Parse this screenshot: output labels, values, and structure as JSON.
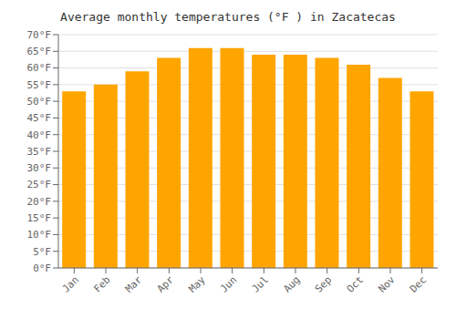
{
  "chart_data": {
    "type": "bar",
    "title": "Average monthly temperatures (°F ) in Zacatecas",
    "categories": [
      "Jan",
      "Feb",
      "Mar",
      "Apr",
      "May",
      "Jun",
      "Jul",
      "Aug",
      "Sep",
      "Oct",
      "Nov",
      "Dec"
    ],
    "values": [
      53,
      55,
      59,
      63,
      66,
      66,
      64,
      64,
      63,
      61,
      57,
      53
    ],
    "color": "#FFA500",
    "ylim": [
      0,
      70
    ],
    "yticks": [
      {
        "value": 0,
        "label": "0°F"
      },
      {
        "value": 5,
        "label": "5°F"
      },
      {
        "value": 10,
        "label": "10°F"
      },
      {
        "value": 15,
        "label": "15°F"
      },
      {
        "value": 20,
        "label": "20°F"
      },
      {
        "value": 25,
        "label": "25°F"
      },
      {
        "value": 30,
        "label": "30°F"
      },
      {
        "value": 35,
        "label": "35°F"
      },
      {
        "value": 40,
        "label": "40°F"
      },
      {
        "value": 45,
        "label": "45°F"
      },
      {
        "value": 50,
        "label": "50°F"
      },
      {
        "value": 55,
        "label": "55°F"
      },
      {
        "value": 60,
        "label": "60°F"
      },
      {
        "value": 65,
        "label": "65°F"
      },
      {
        "value": 70,
        "label": "70°F"
      }
    ],
    "grid": true
  }
}
